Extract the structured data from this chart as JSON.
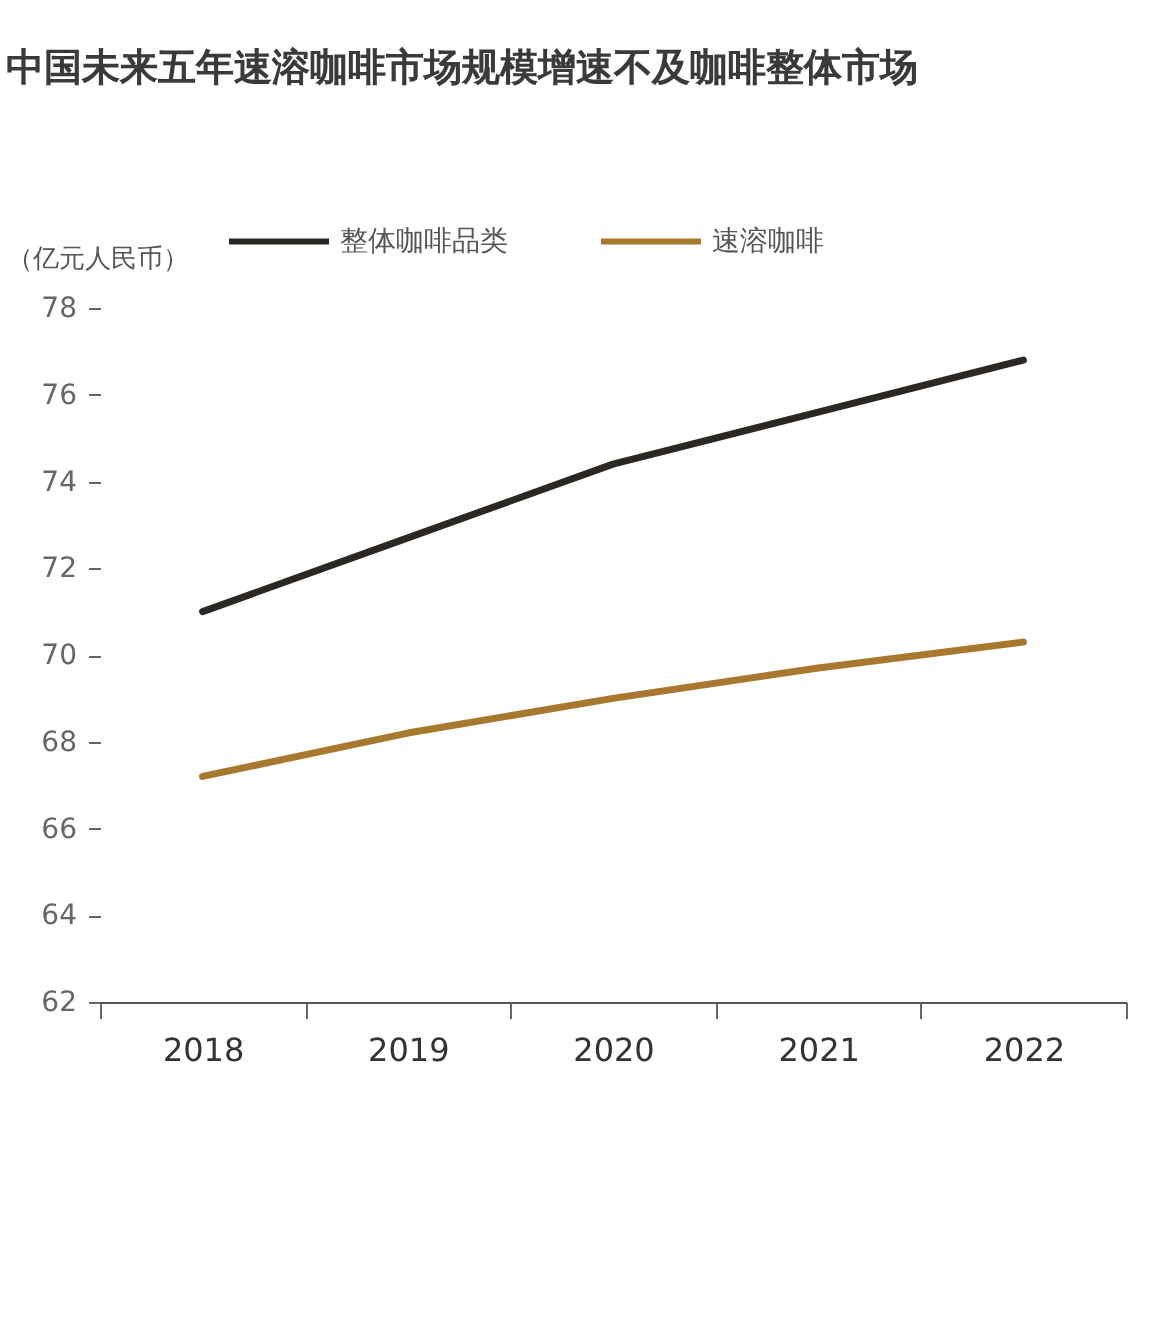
{
  "chart_data": {
    "type": "line",
    "title": "中国未来五年速溶咖啡市场规模增速不及咖啡整体市场",
    "ylabel": "（亿元人民币）",
    "categories": [
      "2018",
      "2019",
      "2020",
      "2021",
      "2022"
    ],
    "series": [
      {
        "name": "整体咖啡品类",
        "color": "#2b2824",
        "values": [
          71.0,
          72.7,
          74.4,
          75.6,
          76.8
        ]
      },
      {
        "name": "速溶咖啡",
        "color": "#a8782e",
        "values": [
          67.2,
          68.2,
          69.0,
          69.7,
          70.3
        ]
      }
    ],
    "ylim": [
      62,
      78
    ],
    "yticks": [
      62,
      64,
      66,
      68,
      70,
      72,
      74,
      76,
      78
    ],
    "grid": false,
    "legend": "top",
    "line_style": "solid"
  }
}
